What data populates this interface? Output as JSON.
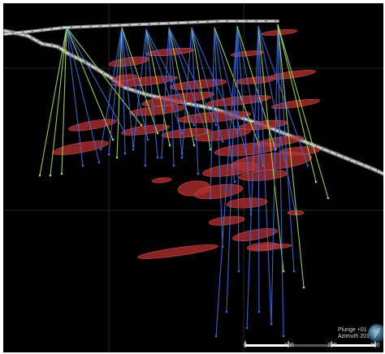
{
  "view": {
    "plunge_label": "Plunge +01",
    "azimuth_label": "Azimuth 201"
  },
  "scale_bar": {
    "ticks": [
      "0",
      "100",
      "200",
      "300"
    ]
  },
  "colors": {
    "background": "#000000",
    "grid": "#2a2a2a",
    "drillhole_blue": "#3a6fe0",
    "drillhole_green": "#a8e05a",
    "ore_lens": "#b03030",
    "topo_surface": "#d0d0d0"
  },
  "icons": {
    "orientation": "globe-orientation-icon"
  }
}
